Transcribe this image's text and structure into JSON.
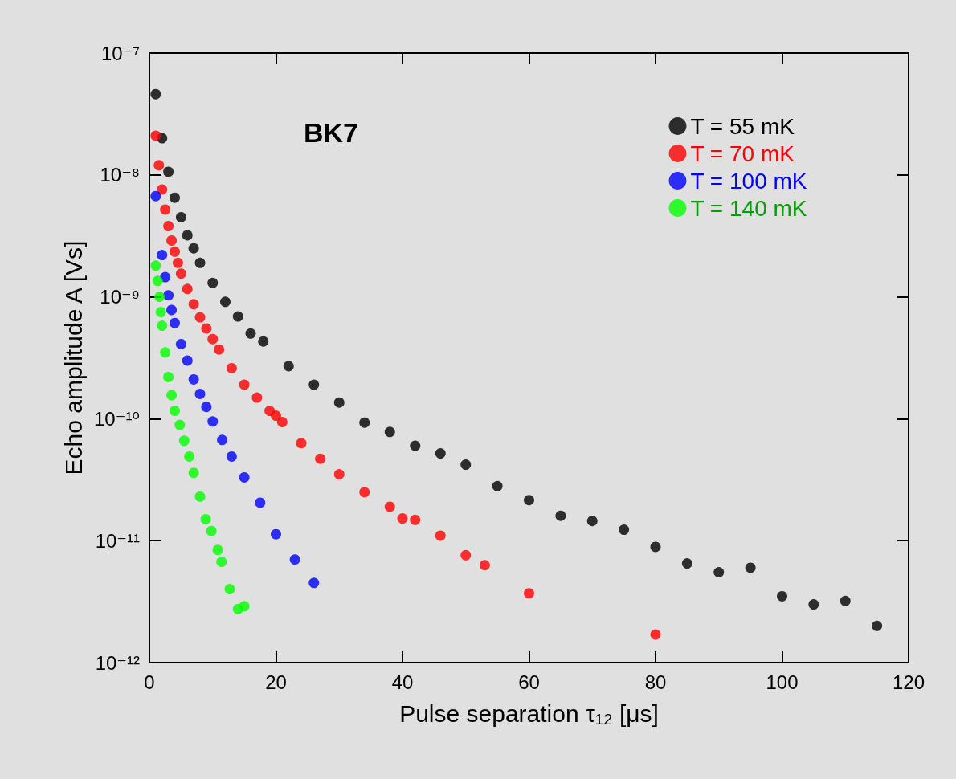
{
  "chart_data": {
    "type": "scatter",
    "xlabel": "Pulse separation τ₁₂ [μs]",
    "ylabel": "Echo amplitude A [Vs]",
    "annotations": [
      "BK7"
    ],
    "xlim": [
      0,
      120
    ],
    "xticks": [
      0,
      20,
      40,
      60,
      80,
      100,
      120
    ],
    "ylim": [
      1e-12,
      1e-07
    ],
    "yticks": [
      {
        "value": 1e-12,
        "label": "10⁻¹²"
      },
      {
        "value": 1e-11,
        "label": "10⁻¹¹"
      },
      {
        "value": 1e-10,
        "label": "10⁻¹⁰"
      },
      {
        "value": 1e-09,
        "label": "10⁻⁹"
      },
      {
        "value": 1e-08,
        "label": "10⁻⁸"
      },
      {
        "value": 1e-07,
        "label": "10⁻⁷"
      }
    ],
    "log": "y",
    "legend": "top right",
    "marker": "circle",
    "series": [
      {
        "name": "T = 55 mK",
        "color": "#000000",
        "x": [
          1,
          2,
          3,
          4,
          5,
          6,
          7,
          8,
          10,
          12,
          14,
          16,
          18,
          22,
          26,
          30,
          34,
          38,
          42,
          46,
          50,
          55,
          60,
          65,
          70,
          75,
          80,
          85,
          90,
          95,
          100,
          105,
          110,
          115
        ],
        "values": [
          4.6e-08,
          2e-08,
          1.06e-08,
          6.5e-09,
          4.5e-09,
          3.2e-09,
          2.5e-09,
          1.9e-09,
          1.3e-09,
          9.1e-10,
          6.9e-10,
          5e-10,
          4.3e-10,
          2.7e-10,
          1.9e-10,
          1.36e-10,
          9.3e-11,
          7.8e-11,
          6e-11,
          5.2e-11,
          4.2e-11,
          2.8e-11,
          2.15e-11,
          1.6e-11,
          1.45e-11,
          1.23e-11,
          8.9e-12,
          6.5e-12,
          5.5e-12,
          6e-12,
          3.5e-12,
          3e-12,
          3.2e-12,
          2e-12
        ]
      },
      {
        "name": "T = 70 mK",
        "color": "#ff0000",
        "x": [
          1,
          1.5,
          2,
          2.5,
          3,
          3.5,
          4,
          4.5,
          5,
          6,
          7,
          8,
          9,
          10,
          11,
          13,
          15,
          17,
          19,
          20,
          21,
          24,
          27,
          30,
          34,
          38,
          40,
          42,
          46,
          50,
          53,
          60,
          80
        ],
        "values": [
          2.1e-08,
          1.2e-08,
          7.6e-09,
          5.2e-09,
          3.8e-09,
          2.9e-09,
          2.35e-09,
          1.9e-09,
          1.55e-09,
          1.16e-09,
          8.7e-10,
          6.8e-10,
          5.5e-10,
          4.5e-10,
          3.7e-10,
          2.6e-10,
          1.9e-10,
          1.49e-10,
          1.16e-10,
          1.06e-10,
          9.4e-11,
          6.3e-11,
          4.7e-11,
          3.5e-11,
          2.5e-11,
          1.9e-11,
          1.52e-11,
          1.48e-11,
          1.1e-11,
          7.6e-12,
          6.3e-12,
          3.7e-12,
          1.7e-12
        ]
      },
      {
        "name": "T = 100 mK",
        "color": "#0000ff",
        "x": [
          1,
          2,
          2.5,
          3,
          3.5,
          4,
          5,
          6,
          7,
          8,
          9,
          10,
          11.5,
          13,
          15,
          17.5,
          20,
          23,
          26
        ],
        "values": [
          6.7e-09,
          2.2e-09,
          1.45e-09,
          1.03e-09,
          7.8e-10,
          6.1e-10,
          4.1e-10,
          3e-10,
          2.1e-10,
          1.6e-10,
          1.25e-10,
          9.5e-11,
          6.7e-11,
          4.9e-11,
          3.3e-11,
          2.05e-11,
          1.13e-11,
          7e-12,
          4.5e-12
        ]
      },
      {
        "name": "T = 140 mK",
        "color": "#00ff00",
        "x": [
          1,
          1.3,
          1.6,
          1.8,
          2,
          2.5,
          3,
          3.5,
          4,
          4.8,
          5.5,
          6.3,
          7,
          8,
          8.9,
          9.8,
          10.8,
          11.4,
          12.7,
          14,
          15
        ],
        "values": [
          1.8e-09,
          1.35e-09,
          1e-09,
          7.5e-10,
          5.8e-10,
          3.5e-10,
          2.2e-10,
          1.56e-10,
          1.16e-10,
          8.9e-11,
          6.6e-11,
          4.9e-11,
          3.6e-11,
          2.3e-11,
          1.5e-11,
          1.2e-11,
          8.4e-12,
          6.7e-12,
          4e-12,
          2.75e-12,
          2.9e-12
        ]
      }
    ]
  }
}
